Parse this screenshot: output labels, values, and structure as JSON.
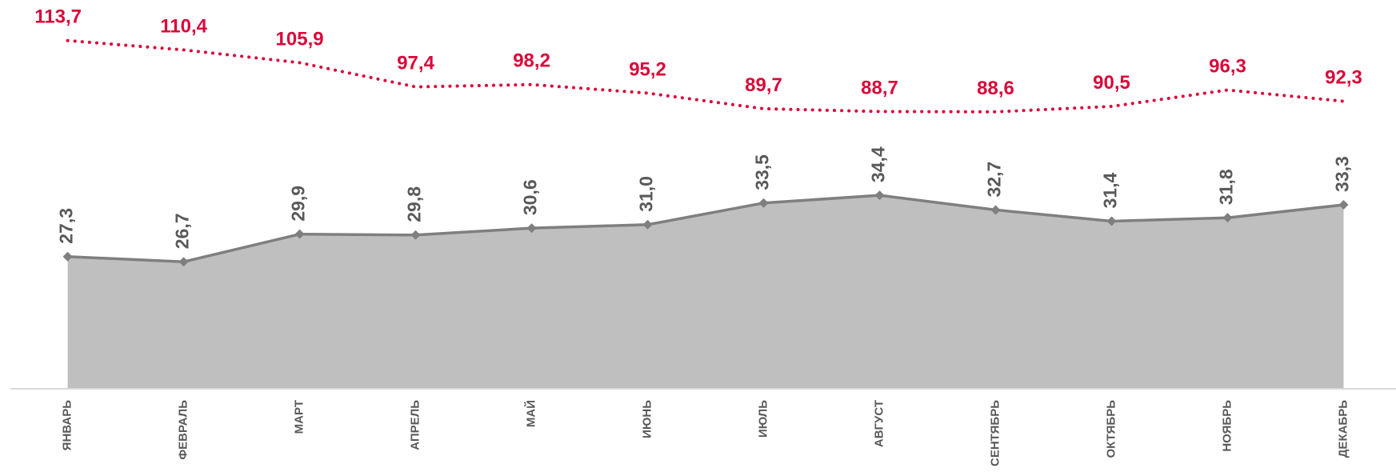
{
  "chart_data": {
    "type": "line",
    "categories": [
      "ЯНВАРЬ",
      "ФЕВРАЛЬ",
      "МАРТ",
      "АПРЕЛЬ",
      "МАЙ",
      "ИЮНЬ",
      "ИЮЛЬ",
      "АВГУСТ",
      "СЕНТЯБРЬ",
      "ОКТЯБРЬ",
      "НОЯБРЬ",
      "ДЕКАБРЬ"
    ],
    "series": [
      {
        "color": "#7f7f7f",
        "fill": "#bfbfbf",
        "area": true,
        "values": [
          27.3,
          26.7,
          29.9,
          29.8,
          30.6,
          31.0,
          33.5,
          34.4,
          32.7,
          31.4,
          31.8,
          33.3
        ],
        "value_labels": [
          "27,3",
          "26,7",
          "29,9",
          "29,8",
          "30,6",
          "31,0",
          "33,5",
          "34,4",
          "32,7",
          "31,4",
          "31,8",
          "33,3"
        ]
      },
      {
        "color": "#d9083a",
        "axis": "y2",
        "dotted": true,
        "values": [
          113.7,
          110.4,
          105.9,
          97.4,
          98.2,
          95.2,
          89.7,
          88.7,
          88.6,
          90.5,
          96.3,
          92.3
        ],
        "value_labels": [
          "113,7",
          "110,4",
          "105,9",
          "97,4",
          "98,2",
          "95,2",
          "89,7",
          "88,7",
          "88,6",
          "90,5",
          "96,3",
          "92,3"
        ]
      }
    ],
    "ylim": [
      12,
      57
    ],
    "y2lim": [
      -9,
      128
    ]
  }
}
